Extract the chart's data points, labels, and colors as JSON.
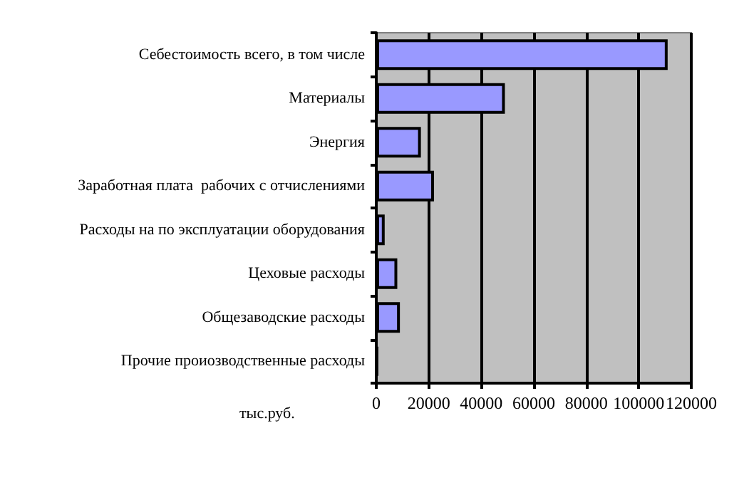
{
  "chart_data": {
    "type": "bar",
    "orientation": "horizontal",
    "xlabel": "тыс.руб.",
    "categories": [
      "Себестоимость всего, в том числе",
      "Материалы",
      "Энергия",
      "Заработная плата  рабочих с отчислениями",
      "Расходы на по эксплуатации оборудования",
      "Цеховые расходы",
      "Общезаводские расходы",
      "Прочие проиозводственные расходы"
    ],
    "values": [
      111000,
      49000,
      17000,
      22000,
      3200,
      8000,
      9000,
      500
    ],
    "color": "#9999ff",
    "xlim": [
      0,
      120000
    ],
    "xticks": [
      0,
      20000,
      40000,
      60000,
      80000,
      100000,
      120000
    ],
    "grid": "x"
  }
}
